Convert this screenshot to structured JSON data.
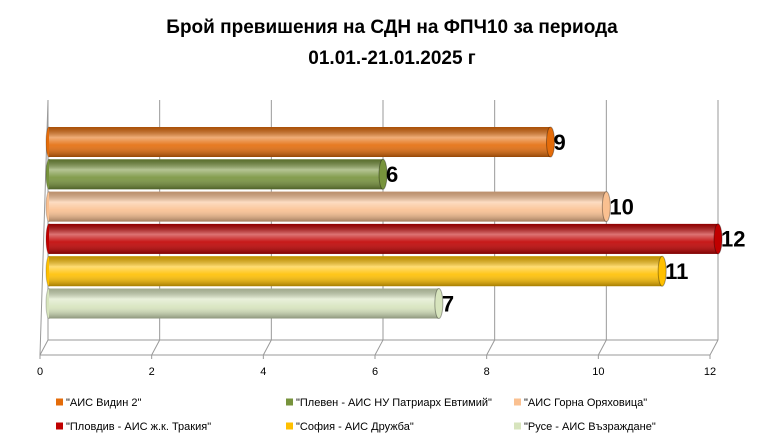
{
  "chart_data": {
    "type": "bar",
    "orientation": "horizontal",
    "title": "Брой превишения на СДН на ФПЧ10 за периода 01.01.-21.01.2025 г",
    "xlim": [
      0,
      12
    ],
    "xticks": [
      0,
      2,
      4,
      6,
      8,
      10,
      12
    ],
    "grid": true,
    "legend": "bottom",
    "series": [
      {
        "name": "\"АИС Видин 2\"",
        "color": "#e46c0a",
        "values": [
          9
        ]
      },
      {
        "name": "\"Плевен - АИС НУ Патриарх Евтимий\"",
        "color": "#77933c",
        "values": [
          6
        ]
      },
      {
        "name": "\"АИС Горна Оряховица\"",
        "color": "#fac090",
        "values": [
          10
        ]
      },
      {
        "name": "\"Пловдив - АИС ж.к. Тракия\"",
        "color": "#c00000",
        "values": [
          12
        ]
      },
      {
        "name": "\"София - АИС Дружба\"",
        "color": "#ffc000",
        "values": [
          11
        ]
      },
      {
        "name": "\"Русе - АИС Възраждане\"",
        "color": "#d7e4bd",
        "values": [
          7
        ]
      }
    ]
  }
}
